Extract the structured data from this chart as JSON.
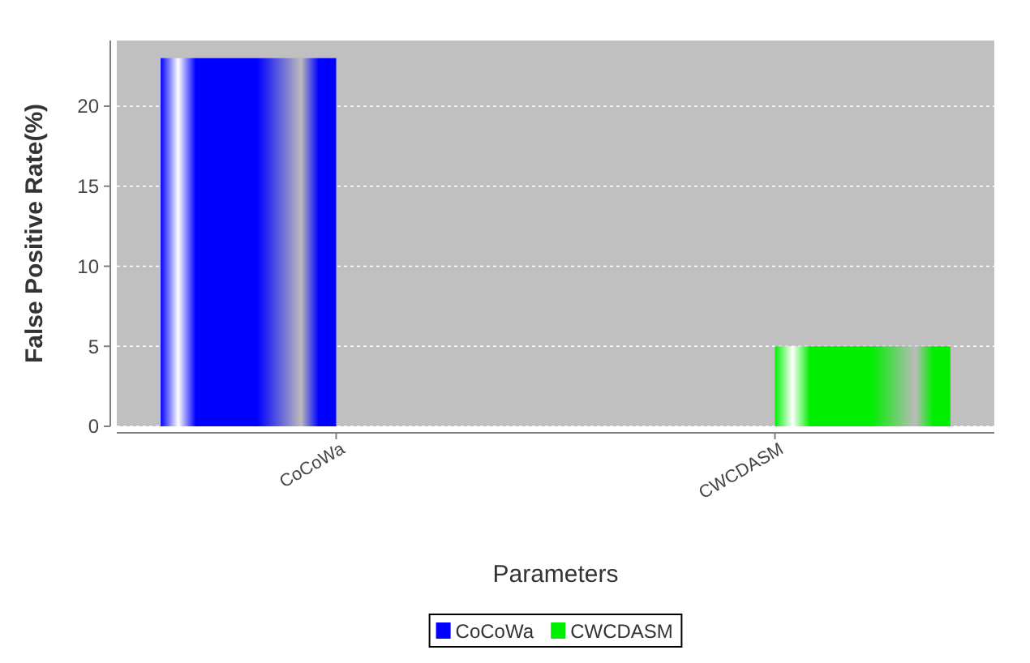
{
  "chart_data": {
    "type": "bar",
    "xlabel": "Parameters",
    "ylabel": "False Positive Rate(%)",
    "categories": [
      "CoCoWa",
      "CWCDASM"
    ],
    "series": [
      {
        "name": "CoCoWa",
        "color": "#0000ff",
        "values": [
          23,
          null
        ]
      },
      {
        "name": "CWCDASM",
        "color": "#00ee00",
        "values": [
          null,
          5
        ]
      }
    ],
    "ylim": [
      0,
      24.1
    ],
    "yticks": [
      0,
      5,
      10,
      15,
      20
    ],
    "grid": "y",
    "legend": "bottom"
  }
}
